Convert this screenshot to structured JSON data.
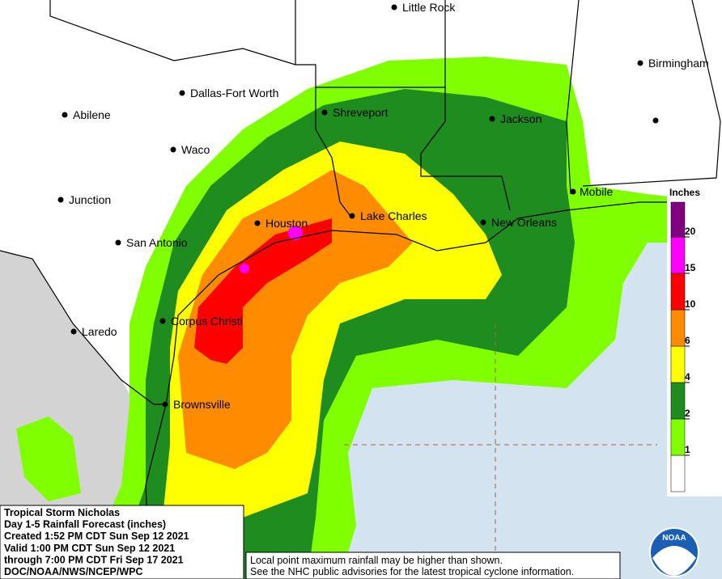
{
  "cities": [
    {
      "name": "Little Rock"
    },
    {
      "name": "Birmingham"
    },
    {
      "name": "Dallas-Fort Worth"
    },
    {
      "name": "Shreveport"
    },
    {
      "name": "Jackson"
    },
    {
      "name": "Abilene"
    },
    {
      "name": "Waco"
    },
    {
      "name": "Mobile"
    },
    {
      "name": "Junction"
    },
    {
      "name": "Houston"
    },
    {
      "name": "Lake Charles"
    },
    {
      "name": "New Orleans"
    },
    {
      "name": "San Antonio"
    },
    {
      "name": "Corpus Christi"
    },
    {
      "name": "Laredo"
    },
    {
      "name": "Brownsville"
    }
  ],
  "info": {
    "lines": [
      "Tropical Storm Nicholas",
      "Day 1-5 Rainfall Forecast (inches)",
      "Created 1:52 PM CDT Sun Sep 12 2021",
      "Valid 1:00 PM CDT Sun Sep 12 2021",
      "through 7:00 PM CDT Fri Sep 17 2021",
      "DOC/NOAA/NWS/NCEP/WPC"
    ]
  },
  "note": {
    "lines": [
      "Local point maximum rainfall may be higher than shown.",
      "See the NHC public advisories for the latest tropical cyclone information."
    ]
  },
  "legend": {
    "title": "Inches",
    "ticks": [
      1,
      2,
      4,
      6,
      10,
      15,
      20
    ],
    "colors": [
      "#ffffff",
      "#7fff00",
      "#1e8c1e",
      "#ffff00",
      "#ff8c00",
      "#ff0000",
      "#ff00ff",
      "#800080"
    ]
  },
  "logo": {
    "label": "NOAA"
  }
}
